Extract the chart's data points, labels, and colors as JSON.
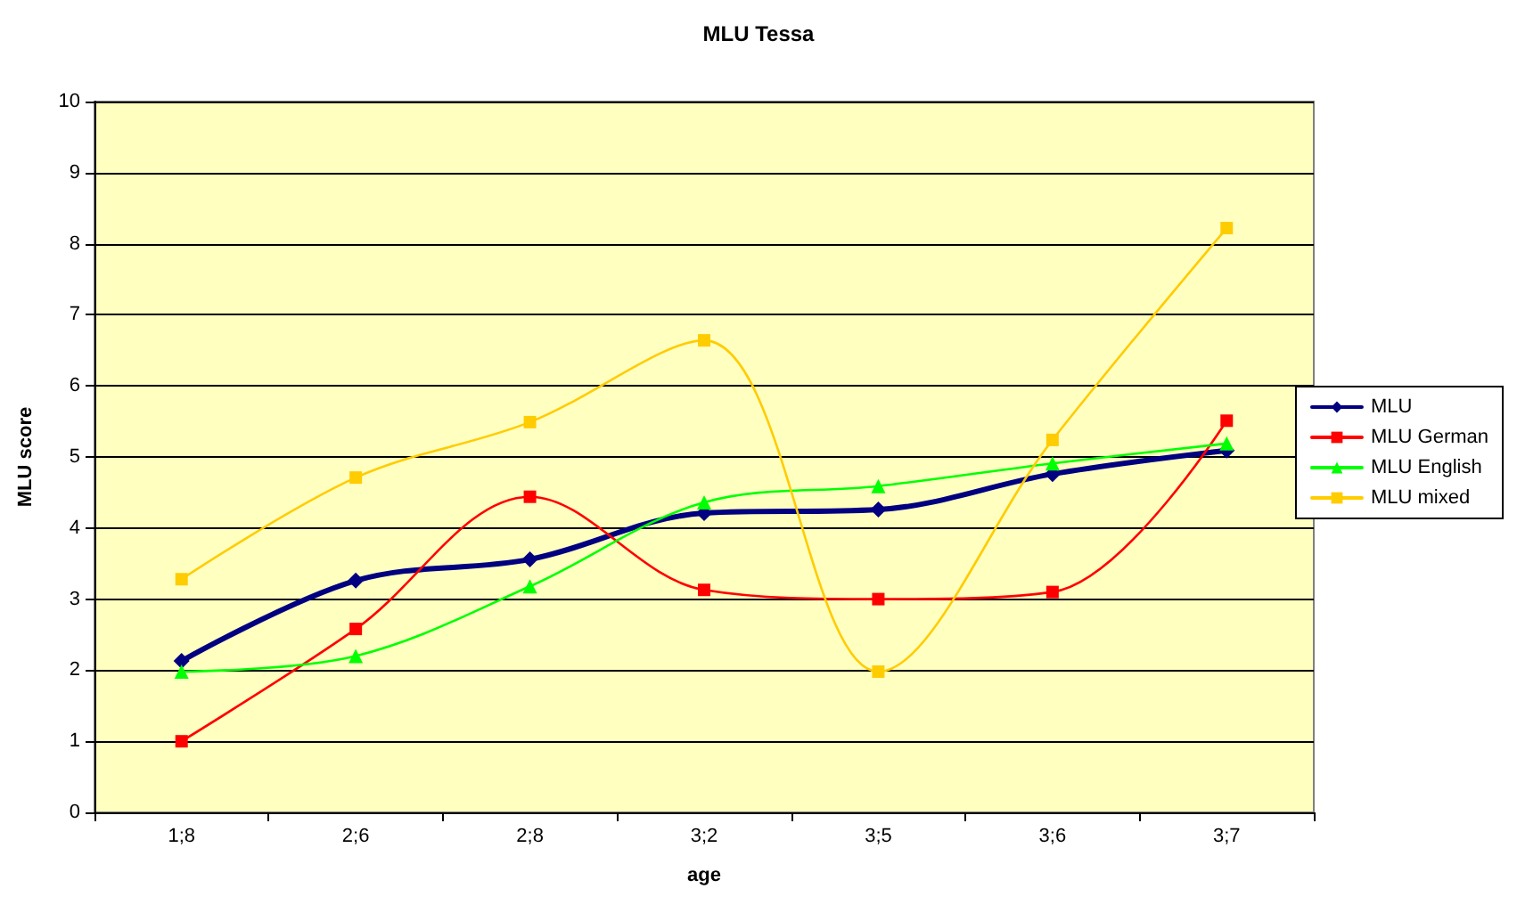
{
  "chart_data": {
    "type": "line",
    "title": "MLU Tessa",
    "xlabel": "age",
    "ylabel": "MLU score",
    "categories": [
      "1;8",
      "2;6",
      "2;8",
      "3;2",
      "3;5",
      "3;6",
      "3;7"
    ],
    "series": [
      {
        "name": "MLU",
        "color": "#000080",
        "marker": "diamond",
        "values": [
          2.13,
          3.26,
          3.56,
          4.21,
          4.26,
          4.76,
          5.09
        ]
      },
      {
        "name": "MLU German",
        "color": "#ff0000",
        "marker": "square",
        "values": [
          1.0,
          2.58,
          4.44,
          3.13,
          3.0,
          3.1,
          5.51
        ]
      },
      {
        "name": "MLU English",
        "color": "#00ff00",
        "marker": "triangle",
        "values": [
          1.98,
          2.2,
          3.18,
          4.36,
          4.59,
          4.91,
          5.19
        ]
      },
      {
        "name": "MLU mixed",
        "color": "#ffcc00",
        "marker": "square",
        "values": [
          3.28,
          4.71,
          5.49,
          6.64,
          1.98,
          5.24,
          8.22
        ]
      }
    ],
    "ylim": [
      0,
      10
    ],
    "yticks": [
      0,
      1,
      2,
      3,
      4,
      5,
      6,
      7,
      8,
      9,
      10
    ],
    "grid": "y",
    "legend": "right",
    "line_style": "solid"
  }
}
